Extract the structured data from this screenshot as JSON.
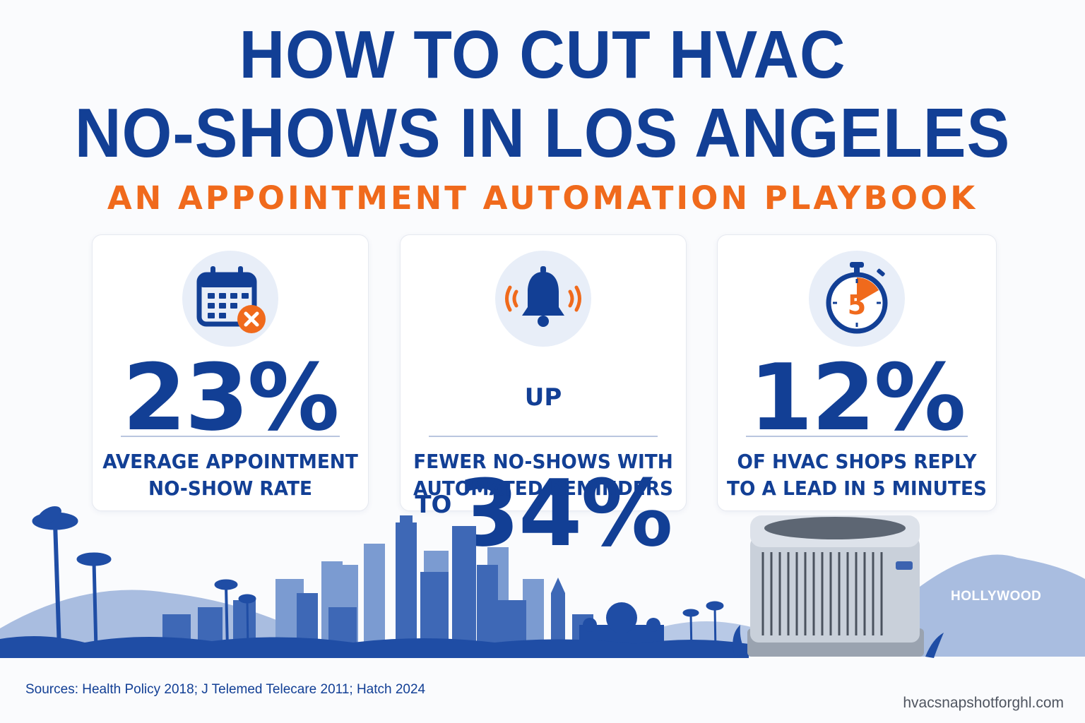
{
  "header": {
    "title_line1": "HOW TO CUT HVAC",
    "title_line2": "NO-SHOWS IN LOS ANGELES",
    "subtitle": "AN APPOINTMENT AUTOMATION PLAYBOOK"
  },
  "cards": [
    {
      "icon": "calendar-cancel-icon",
      "prefix": "",
      "stat": "23%",
      "caption_line1": "AVERAGE APPOINTMENT",
      "caption_line2": "NO-SHOW RATE"
    },
    {
      "icon": "bell-ringing-icon",
      "prefix": "UP TO",
      "stat": "34%",
      "caption_line1": "FEWER NO-SHOWS WITH",
      "caption_line2": "AUTOMATED REMINDERS"
    },
    {
      "icon": "stopwatch-icon",
      "icon_number": "5",
      "prefix": "",
      "stat": "12%",
      "caption_line1": "OF HVAC SHOPS REPLY",
      "caption_line2": "TO A LEAD IN 5 MINUTES"
    }
  ],
  "illustration": {
    "hollywood_sign": "HOLLYWOOD"
  },
  "footer": {
    "sources": "Sources: Health Policy 2018; J Telemed Telecare 2011; Hatch 2024",
    "website": "hvacsnapshotforghl.com"
  },
  "colors": {
    "primary_blue": "#123f95",
    "accent_orange": "#f06a1c",
    "icon_bg": "#e8eef8"
  }
}
